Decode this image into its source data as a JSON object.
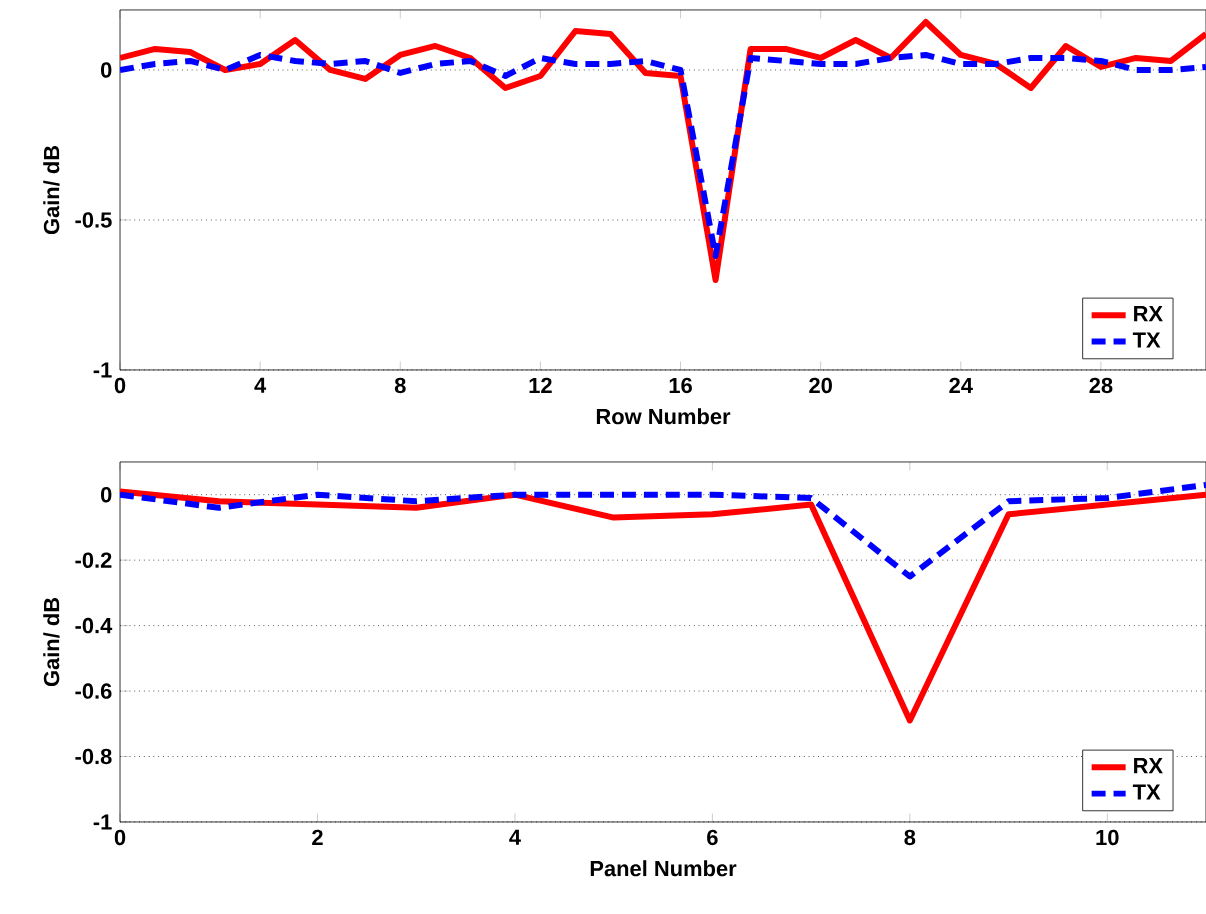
{
  "chart_data": [
    {
      "type": "line",
      "xlabel": "Row Number",
      "ylabel": "Gain/ dB",
      "x": [
        0,
        1,
        2,
        3,
        4,
        5,
        6,
        7,
        8,
        9,
        10,
        11,
        12,
        13,
        14,
        15,
        16,
        17,
        18,
        19,
        20,
        21,
        22,
        23,
        24,
        25,
        26,
        27,
        28,
        29,
        30,
        31
      ],
      "series": [
        {
          "name": "RX",
          "color": "#ff0000",
          "line_style": "solid",
          "values": [
            0.04,
            0.07,
            0.06,
            0.0,
            0.02,
            0.1,
            0.0,
            -0.03,
            0.05,
            0.08,
            0.04,
            -0.06,
            -0.02,
            0.13,
            0.12,
            -0.01,
            -0.02,
            -0.7,
            0.07,
            0.07,
            0.04,
            0.1,
            0.04,
            0.16,
            0.05,
            0.02,
            -0.06,
            0.08,
            0.01,
            0.04,
            0.03,
            0.12
          ]
        },
        {
          "name": "TX",
          "color": "#0000ff",
          "line_style": "dashed",
          "values": [
            0.0,
            0.02,
            0.03,
            0.0,
            0.05,
            0.03,
            0.02,
            0.03,
            -0.01,
            0.02,
            0.03,
            -0.02,
            0.04,
            0.02,
            0.02,
            0.03,
            0.0,
            -0.62,
            0.04,
            0.03,
            0.02,
            0.02,
            0.04,
            0.05,
            0.02,
            0.02,
            0.04,
            0.04,
            0.03,
            0.0,
            0.0,
            0.01
          ]
        }
      ],
      "xlim": [
        0,
        31
      ],
      "xticks": [
        0,
        4,
        8,
        12,
        16,
        20,
        24,
        28
      ],
      "ylim": [
        -1,
        0.2
      ],
      "yticks": [
        -1,
        -0.5,
        0
      ],
      "grid": "y",
      "legend": "bottom right"
    },
    {
      "type": "line",
      "xlabel": "Panel Number",
      "ylabel": "Gain/ dB",
      "x": [
        0,
        1,
        2,
        3,
        4,
        5,
        6,
        7,
        8,
        9,
        10,
        11
      ],
      "series": [
        {
          "name": "RX",
          "color": "#ff0000",
          "line_style": "solid",
          "values": [
            0.01,
            -0.02,
            -0.03,
            -0.04,
            0.0,
            -0.07,
            -0.06,
            -0.03,
            -0.69,
            -0.06,
            -0.03,
            0.0
          ]
        },
        {
          "name": "TX",
          "color": "#0000ff",
          "line_style": "dashed",
          "values": [
            0.0,
            -0.04,
            0.0,
            -0.02,
            0.0,
            0.0,
            0.0,
            -0.01,
            -0.25,
            -0.02,
            -0.01,
            0.03
          ]
        }
      ],
      "xlim": [
        0,
        11
      ],
      "xticks": [
        0,
        2,
        4,
        6,
        8,
        10
      ],
      "ylim": [
        -1,
        0.1
      ],
      "yticks": [
        -1,
        -0.8,
        -0.6,
        -0.4,
        -0.2,
        0
      ],
      "grid": "y",
      "legend": "bottom right"
    }
  ]
}
